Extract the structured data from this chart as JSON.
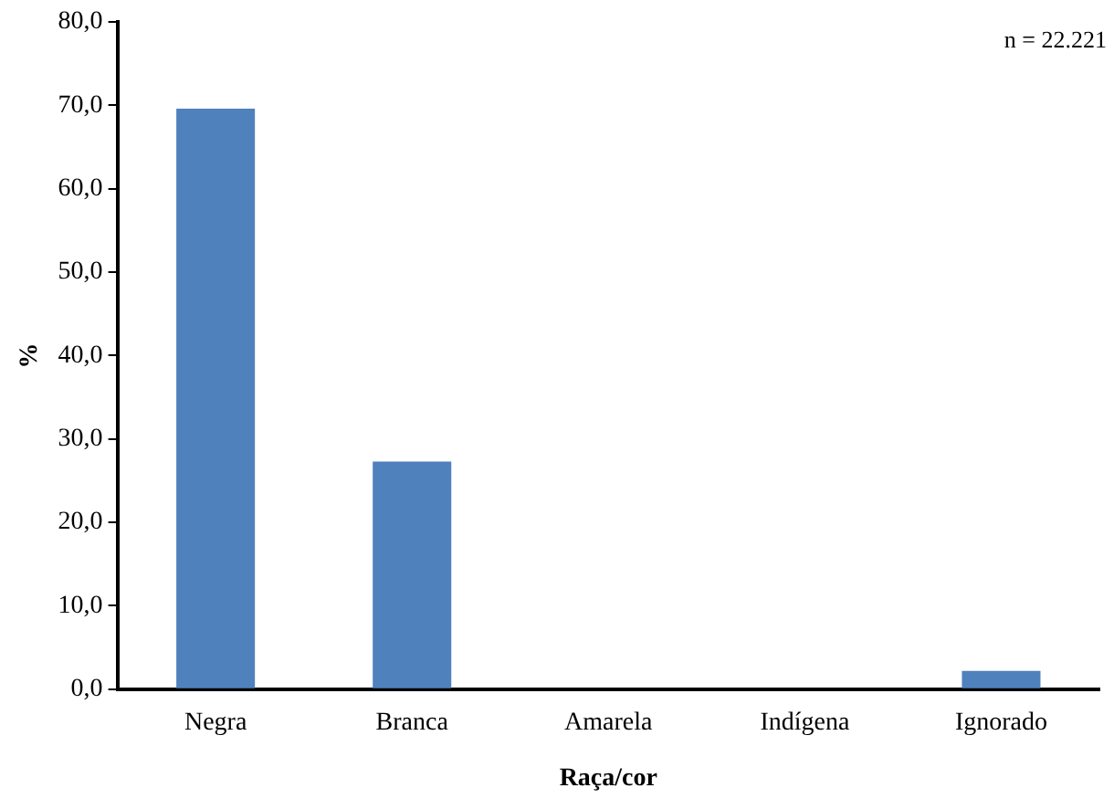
{
  "chart_data": {
    "type": "bar",
    "xlabel": "Raça/cor",
    "ylabel": "%",
    "annotations": [
      "n = 22.221"
    ],
    "categories": [
      "Negra",
      "Branca",
      "Amarela",
      "Indígena",
      "Ignorado"
    ],
    "values": [
      69.6,
      27.3,
      0,
      0,
      2.2
    ],
    "color": "#4f81bd",
    "ylim": [
      0,
      80
    ],
    "yticks": [
      {
        "value": 0,
        "label": "0,0"
      },
      {
        "value": 10,
        "label": "10,0"
      },
      {
        "value": 20,
        "label": "20,0"
      },
      {
        "value": 30,
        "label": "30,0"
      },
      {
        "value": 40,
        "label": "40,0"
      },
      {
        "value": 50,
        "label": "50,0"
      },
      {
        "value": 60,
        "label": "60,0"
      },
      {
        "value": 70,
        "label": "70,0"
      },
      {
        "value": 80,
        "label": "80,0"
      }
    ],
    "grid": false,
    "legend": false
  }
}
